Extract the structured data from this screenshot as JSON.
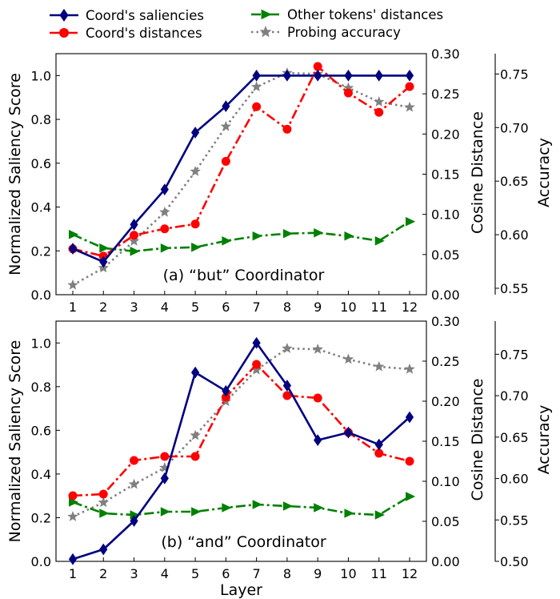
{
  "legend": [
    {
      "label": "Coord's saliencies",
      "color": "#000080",
      "marker": "diamond",
      "dash": "solid"
    },
    {
      "label": "Coord's distances",
      "color": "#ff0000",
      "marker": "circle",
      "dash": "dashdot"
    },
    {
      "label": "Other tokens' distances",
      "color": "#008000",
      "marker": "triangle-right",
      "dash": "dashdot"
    },
    {
      "label": "Probing accuracy",
      "color": "#808080",
      "marker": "star",
      "dash": "dotted"
    }
  ],
  "chart_data": [
    {
      "type": "line",
      "annotation": "(a) “but” Coordinator",
      "xlabel": "",
      "x": [
        1,
        2,
        3,
        4,
        5,
        6,
        7,
        8,
        9,
        10,
        11,
        12
      ],
      "left_axis": {
        "label": "Normalized Saliency Score",
        "ylim": [
          0,
          1.1
        ],
        "ticks": [
          0.0,
          0.2,
          0.4,
          0.6,
          0.8,
          1.0
        ],
        "tick_labels": [
          "0.0",
          "0.2",
          "0.4",
          "0.6",
          "0.8",
          "1.0"
        ]
      },
      "right_axis": {
        "label": "Cosine Distance",
        "ylim": [
          0,
          0.3
        ],
        "ticks": [
          0.0,
          0.05,
          0.1,
          0.15,
          0.2,
          0.25,
          0.3
        ],
        "tick_labels": [
          "0.00",
          "0.05",
          "0.10",
          "0.15",
          "0.20",
          "0.25",
          "0.30"
        ]
      },
      "accuracy_axis": {
        "label": "Accuracy",
        "ylim": [
          0.544,
          0.769
        ],
        "ticks": [
          0.55,
          0.6,
          0.65,
          0.7,
          0.75
        ],
        "tick_labels": [
          "0.55",
          "0.60",
          "0.65",
          "0.70",
          "0.75"
        ]
      },
      "series": [
        {
          "name": "Coord's saliencies",
          "axis": "left",
          "values": [
            0.21,
            0.15,
            0.32,
            0.48,
            0.74,
            0.86,
            1.0,
            1.0,
            1.0,
            1.0,
            1.0,
            1.0
          ]
        },
        {
          "name": "Coord's distances",
          "axis": "right",
          "values": [
            0.057,
            0.048,
            0.074,
            0.082,
            0.088,
            0.166,
            0.234,
            0.206,
            0.284,
            0.251,
            0.227,
            0.259
          ]
        },
        {
          "name": "Other tokens' distances",
          "axis": "right",
          "values": [
            0.075,
            0.058,
            0.054,
            0.058,
            0.059,
            0.067,
            0.073,
            0.076,
            0.077,
            0.073,
            0.067,
            0.091
          ]
        },
        {
          "name": "Probing accuracy",
          "axis": "accuracy",
          "values": [
            0.553,
            0.569,
            0.594,
            0.621,
            0.659,
            0.701,
            0.738,
            0.751,
            0.75,
            0.737,
            0.724,
            0.719
          ]
        }
      ]
    },
    {
      "type": "line",
      "annotation": "(b) “and” Coordinator",
      "xlabel": "Layer",
      "x": [
        1,
        2,
        3,
        4,
        5,
        6,
        7,
        8,
        9,
        10,
        11,
        12
      ],
      "left_axis": {
        "label": "Normalized Saliency Score",
        "ylim": [
          0,
          1.1
        ],
        "ticks": [
          0.0,
          0.2,
          0.4,
          0.6,
          0.8,
          1.0
        ],
        "tick_labels": [
          "0.0",
          "0.2",
          "0.4",
          "0.6",
          "0.8",
          "1.0"
        ]
      },
      "right_axis": {
        "label": "Cosine Distance",
        "ylim": [
          0,
          0.3
        ],
        "ticks": [
          0.0,
          0.05,
          0.1,
          0.15,
          0.2,
          0.25,
          0.3
        ],
        "tick_labels": [
          "0.00",
          "0.05",
          "0.10",
          "0.15",
          "0.20",
          "0.25",
          "0.30"
        ]
      },
      "accuracy_axis": {
        "label": "Accuracy",
        "ylim": [
          0.5,
          0.79
        ],
        "ticks": [
          0.5,
          0.55,
          0.6,
          0.65,
          0.7,
          0.75
        ],
        "tick_labels": [
          "0.50",
          "0.55",
          "0.60",
          "0.65",
          "0.70",
          "0.75"
        ]
      },
      "series": [
        {
          "name": "Coord's saliencies",
          "axis": "left",
          "values": [
            0.01,
            0.055,
            0.185,
            0.38,
            0.865,
            0.78,
            1.0,
            0.805,
            0.555,
            0.59,
            0.535,
            0.66
          ]
        },
        {
          "name": "Coord's distances",
          "axis": "right",
          "values": [
            0.082,
            0.084,
            0.126,
            0.131,
            0.131,
            0.205,
            0.246,
            0.207,
            0.204,
            0.161,
            0.135,
            0.125
          ]
        },
        {
          "name": "Other tokens' distances",
          "axis": "right",
          "values": [
            0.074,
            0.06,
            0.058,
            0.062,
            0.062,
            0.067,
            0.071,
            0.069,
            0.067,
            0.06,
            0.058,
            0.081
          ]
        },
        {
          "name": "Probing accuracy",
          "axis": "accuracy",
          "values": [
            0.554,
            0.571,
            0.593,
            0.613,
            0.652,
            0.693,
            0.731,
            0.757,
            0.756,
            0.744,
            0.735,
            0.732
          ]
        }
      ]
    }
  ]
}
